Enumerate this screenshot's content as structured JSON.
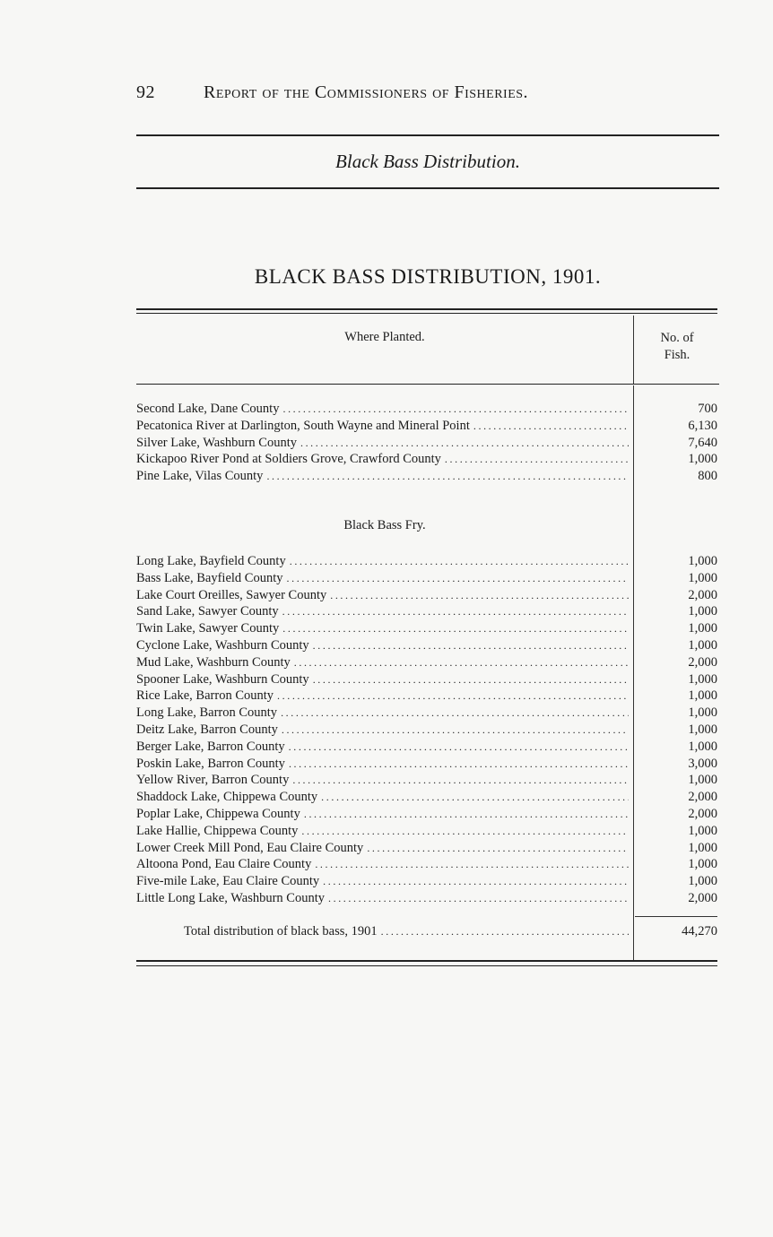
{
  "header": {
    "page_number": "92",
    "running_title": "Report of the Commissioners of Fisheries."
  },
  "subtitle": "Black Bass Distribution.",
  "title": "BLACK BASS DISTRIBUTION, 1901.",
  "table": {
    "columns": {
      "where": "Where Planted.",
      "count_line1": "No. of",
      "count_line2": "Fish."
    },
    "group1": [
      {
        "place": "Second Lake, Dane County",
        "fish": "700"
      },
      {
        "place": "Pecatonica River at Darlington, South Wayne and Mineral Point",
        "fish": "6,130"
      },
      {
        "place": "Silver Lake, Washburn County",
        "fish": "7,640"
      },
      {
        "place": "Kickapoo River Pond at Soldiers Grove, Crawford County",
        "fish": "1,000"
      },
      {
        "place": "Pine Lake, Vilas County",
        "fish": "800"
      }
    ],
    "fry_heading": "Black Bass Fry.",
    "group2": [
      {
        "place": "Long Lake, Bayfield County",
        "fish": "1,000"
      },
      {
        "place": "Bass Lake, Bayfield County",
        "fish": "1,000"
      },
      {
        "place": "Lake Court Oreilles, Sawyer County",
        "fish": "2,000"
      },
      {
        "place": "Sand Lake, Sawyer County",
        "fish": "1,000"
      },
      {
        "place": "Twin Lake, Sawyer County",
        "fish": "1,000"
      },
      {
        "place": "Cyclone Lake, Washburn County",
        "fish": "1,000"
      },
      {
        "place": "Mud Lake, Washburn County",
        "fish": "2,000"
      },
      {
        "place": "Spooner Lake, Washburn County",
        "fish": "1,000"
      },
      {
        "place": "Rice Lake, Barron County",
        "fish": "1,000"
      },
      {
        "place": "Long Lake, Barron County",
        "fish": "1,000"
      },
      {
        "place": "Deitz Lake, Barron County",
        "fish": "1,000"
      },
      {
        "place": "Berger Lake, Barron County",
        "fish": "1,000"
      },
      {
        "place": "Poskin Lake, Barron County",
        "fish": "3,000"
      },
      {
        "place": "Yellow River, Barron County",
        "fish": "1,000"
      },
      {
        "place": "Shaddock Lake, Chippewa County",
        "fish": "2,000"
      },
      {
        "place": "Poplar Lake, Chippewa County",
        "fish": "2,000"
      },
      {
        "place": "Lake Hallie, Chippewa County",
        "fish": "1,000"
      },
      {
        "place": "Lower Creek Mill Pond, Eau Claire County",
        "fish": "1,000"
      },
      {
        "place": "Altoona Pond, Eau Claire County",
        "fish": "1,000"
      },
      {
        "place": "Five-mile Lake, Eau Claire County",
        "fish": "1,000"
      },
      {
        "place": "Little Long Lake, Washburn County",
        "fish": "2,000"
      }
    ],
    "total": {
      "label": "Total distribution of black bass, 1901",
      "fish": "44,270"
    }
  }
}
